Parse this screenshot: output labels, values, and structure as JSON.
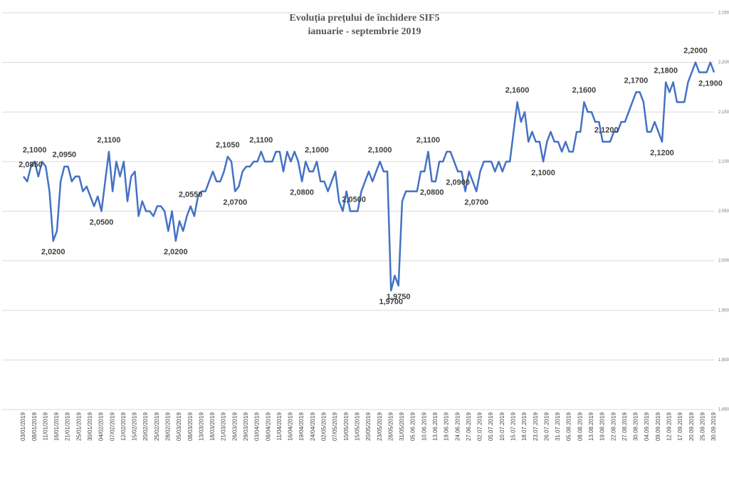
{
  "chart_data": {
    "type": "line",
    "title": "Evoluția prețului de închidere SIF5",
    "subtitle": "ianuarie - septembrie 2019",
    "color": "#4472c4",
    "grid": true,
    "ylim": [
      1.85,
      2.25
    ],
    "yticks": [
      {
        "value": 1.85,
        "label": "1,850"
      },
      {
        "value": 1.9,
        "label": "1,900"
      },
      {
        "value": 1.95,
        "label": "1,950"
      },
      {
        "value": 2.0,
        "label": "2,000"
      },
      {
        "value": 2.05,
        "label": "2,050"
      },
      {
        "value": 2.1,
        "label": "2,100"
      },
      {
        "value": 2.15,
        "label": "2,150"
      },
      {
        "value": 2.2,
        "label": "2,200"
      },
      {
        "value": 2.25,
        "label": "2,250"
      }
    ],
    "categories": [
      "03/01/2019",
      null,
      null,
      "08/01/2019",
      null,
      null,
      "11/01/2019",
      null,
      null,
      "16/01/2019",
      null,
      null,
      "21/01/2019",
      null,
      null,
      "25/01/2019",
      null,
      null,
      "30/01/2019",
      null,
      null,
      "04/02/2019",
      null,
      null,
      "07/02/2019",
      null,
      null,
      "12/02/2019",
      null,
      null,
      "15/02/2019",
      null,
      null,
      "20/02/2019",
      null,
      null,
      "25/02/2019",
      null,
      null,
      "28/02/2019",
      null,
      null,
      "05/03/2019",
      null,
      null,
      "08/03/2019",
      null,
      null,
      "13/03/2019",
      null,
      null,
      "18/03/2019",
      null,
      null,
      "21/03/2019",
      null,
      null,
      "26/03/2019",
      null,
      null,
      "29/03/2019",
      null,
      null,
      "03/04/2019",
      null,
      null,
      "08/04/2019",
      null,
      null,
      "11/04/2019",
      null,
      null,
      "16/04/2019",
      null,
      null,
      "19/04/2019",
      null,
      null,
      "24/04/2019",
      null,
      null,
      "02/05/2019",
      null,
      null,
      "07/05/2019",
      null,
      null,
      "10/05/2019",
      null,
      null,
      "15/05/2019",
      null,
      null,
      "20/05/2019",
      null,
      null,
      "23/05/2019",
      null,
      null,
      "28/05/2019",
      null,
      null,
      "31/05/2019",
      null,
      null,
      "05.06.2019",
      null,
      null,
      "10.06.2019",
      null,
      null,
      "13.06.2019",
      null,
      null,
      "19.06.2019",
      null,
      null,
      "24.06.2019",
      null,
      null,
      "27.06.2019",
      null,
      null,
      "02.07.2019",
      null,
      null,
      "05.07.2019",
      null,
      null,
      "10.07.2019",
      null,
      null,
      "15.07.2019",
      null,
      null,
      "18.07.2019",
      null,
      null,
      "23.07.2019",
      null,
      null,
      "26.07.2019",
      null,
      null,
      "31.07.2019",
      null,
      null,
      "05.08.2019",
      null,
      null,
      "08.08.2019",
      null,
      null,
      "13.08.2019",
      null,
      null,
      "19.08.2019",
      null,
      null,
      "22.08.2019",
      null,
      null,
      "27.08.2019",
      null,
      null,
      "30.08.2019",
      null,
      null,
      "04.09.2019",
      null,
      null,
      "09.09.2019",
      null,
      null,
      "12.09.2019",
      null,
      null,
      "17.09.2019",
      null,
      null,
      "20.09.2019",
      null,
      null,
      "25.09.2019",
      null,
      null,
      "30.09.2019"
    ],
    "values": [
      2.085,
      2.08,
      2.095,
      2.1,
      2.085,
      2.1,
      2.095,
      2.07,
      2.02,
      2.03,
      2.08,
      2.095,
      2.095,
      2.08,
      2.085,
      2.085,
      2.07,
      2.075,
      2.065,
      2.055,
      2.065,
      2.05,
      2.08,
      2.11,
      2.07,
      2.1,
      2.085,
      2.1,
      2.06,
      2.085,
      2.09,
      2.045,
      2.06,
      2.05,
      2.05,
      2.045,
      2.055,
      2.055,
      2.05,
      2.03,
      2.05,
      2.02,
      2.04,
      2.03,
      2.045,
      2.055,
      2.045,
      2.065,
      2.07,
      2.07,
      2.08,
      2.09,
      2.08,
      2.08,
      2.09,
      2.105,
      2.1,
      2.07,
      2.075,
      2.09,
      2.095,
      2.095,
      2.1,
      2.1,
      2.11,
      2.1,
      2.1,
      2.1,
      2.11,
      2.11,
      2.09,
      2.11,
      2.1,
      2.11,
      2.1,
      2.08,
      2.1,
      2.09,
      2.09,
      2.1,
      2.08,
      2.08,
      2.07,
      2.08,
      2.09,
      2.06,
      2.05,
      2.07,
      2.05,
      2.05,
      2.05,
      2.07,
      2.08,
      2.09,
      2.08,
      2.09,
      2.1,
      2.09,
      2.09,
      1.97,
      1.985,
      1.975,
      2.06,
      2.07,
      2.07,
      2.07,
      2.07,
      2.09,
      2.09,
      2.11,
      2.08,
      2.08,
      2.1,
      2.1,
      2.11,
      2.11,
      2.1,
      2.09,
      2.09,
      2.07,
      2.09,
      2.08,
      2.07,
      2.09,
      2.1,
      2.1,
      2.1,
      2.09,
      2.1,
      2.09,
      2.1,
      2.1,
      2.13,
      2.16,
      2.14,
      2.15,
      2.12,
      2.13,
      2.12,
      2.12,
      2.1,
      2.12,
      2.13,
      2.12,
      2.12,
      2.11,
      2.12,
      2.11,
      2.11,
      2.13,
      2.13,
      2.16,
      2.15,
      2.15,
      2.14,
      2.14,
      2.12,
      2.12,
      2.12,
      2.13,
      2.13,
      2.14,
      2.14,
      2.15,
      2.16,
      2.17,
      2.17,
      2.16,
      2.13,
      2.13,
      2.14,
      2.13,
      2.12,
      2.18,
      2.17,
      2.18,
      2.16,
      2.16,
      2.16,
      2.18,
      2.19,
      2.2,
      2.19,
      2.19,
      2.19,
      2.2,
      2.19
    ],
    "value_labels": [
      "2,0850",
      null,
      null,
      "2,1000",
      null,
      null,
      null,
      null,
      "2,0200",
      null,
      null,
      "2,0950",
      null,
      null,
      null,
      null,
      null,
      null,
      null,
      null,
      null,
      "2,0500",
      null,
      "2,1100",
      null,
      null,
      null,
      null,
      null,
      null,
      null,
      null,
      null,
      null,
      null,
      null,
      null,
      null,
      null,
      null,
      null,
      "2,0200",
      null,
      null,
      null,
      "2,0550",
      null,
      null,
      null,
      null,
      null,
      null,
      null,
      null,
      null,
      "2,1050",
      null,
      "2,0700",
      null,
      null,
      null,
      null,
      null,
      null,
      "2,1100",
      null,
      null,
      null,
      null,
      null,
      null,
      null,
      null,
      null,
      null,
      "2,0800",
      null,
      null,
      null,
      "2,1000",
      null,
      null,
      null,
      null,
      null,
      null,
      null,
      null,
      null,
      "2,0500",
      null,
      null,
      null,
      null,
      null,
      null,
      "2,1000",
      null,
      null,
      "1,9700",
      null,
      "1,9750",
      null,
      null,
      null,
      null,
      null,
      null,
      null,
      "2,1100",
      "2,0800",
      null,
      null,
      null,
      null,
      null,
      null,
      "2,0900",
      null,
      null,
      null,
      null,
      "2,0700",
      null,
      null,
      null,
      null,
      null,
      null,
      null,
      null,
      null,
      null,
      "2,1600",
      null,
      null,
      null,
      null,
      null,
      null,
      "2,1000",
      null,
      null,
      null,
      null,
      null,
      null,
      null,
      null,
      null,
      null,
      "2,1600",
      null,
      null,
      null,
      null,
      null,
      "2,1200",
      null,
      null,
      null,
      null,
      null,
      null,
      null,
      "2,1700",
      null,
      null,
      null,
      null,
      null,
      null,
      "2,1200",
      "2,1800",
      null,
      null,
      null,
      null,
      null,
      null,
      null,
      "2,2000",
      null,
      null,
      null,
      null,
      "2,1900"
    ]
  }
}
